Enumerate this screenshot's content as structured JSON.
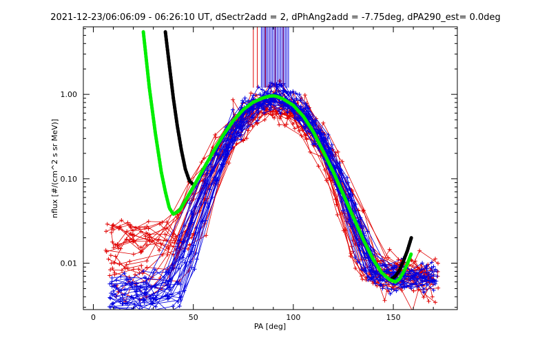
{
  "chart_data": {
    "type": "scatter",
    "title": "2021-12-23/06:06:09 - 06:26:10 UT, dSectr2add = 2, dPhAng2add = -7.75deg, dPA290_est=   0.0deg",
    "xlabel": "PA [deg]",
    "ylabel": "nflux [#/(cm^2 s sr MeV)]",
    "xlim": [
      -5,
      182
    ],
    "ylim_log10": [
      -2.55,
      0.8
    ],
    "xticks": [
      {
        "value": 0,
        "label": "0"
      },
      {
        "value": 50,
        "label": "50"
      },
      {
        "value": 100,
        "label": "100"
      },
      {
        "value": 150,
        "label": "150"
      }
    ],
    "yticks": [
      {
        "value": 0.01,
        "label": "0.01"
      },
      {
        "value": 0.1,
        "label": "0.10"
      },
      {
        "value": 1.0,
        "label": "1.00"
      }
    ],
    "yscale": "log",
    "grid": false,
    "colors": {
      "red_series": "#e00000",
      "blue_series": "#0000e0",
      "fit_green": "#00ee00",
      "fit_black": "#000000"
    },
    "fit_curves": [
      {
        "color": "green",
        "x": [
          25,
          28,
          31,
          34,
          36,
          38,
          40,
          43,
          46,
          50,
          55,
          60,
          65,
          70,
          75,
          80,
          85,
          88,
          90,
          92,
          95,
          100,
          105,
          110,
          115,
          120,
          125,
          130,
          135,
          140,
          144,
          148,
          151,
          153,
          155,
          157,
          159
        ],
        "y": [
          5.5,
          1.2,
          0.35,
          0.12,
          0.07,
          0.045,
          0.038,
          0.042,
          0.055,
          0.08,
          0.13,
          0.21,
          0.33,
          0.49,
          0.66,
          0.81,
          0.91,
          0.95,
          0.96,
          0.94,
          0.88,
          0.74,
          0.55,
          0.36,
          0.21,
          0.12,
          0.065,
          0.035,
          0.019,
          0.011,
          0.0078,
          0.0064,
          0.006,
          0.0065,
          0.0078,
          0.0098,
          0.013
        ]
      },
      {
        "color": "black",
        "x": [
          36,
          38,
          40,
          42,
          44,
          46,
          48,
          50
        ],
        "y": [
          5.5,
          2.2,
          0.9,
          0.42,
          0.22,
          0.13,
          0.095,
          0.085
        ]
      },
      {
        "color": "black",
        "x": [
          149,
          151,
          153,
          155,
          157,
          159
        ],
        "y": [
          0.0065,
          0.007,
          0.0082,
          0.0105,
          0.014,
          0.02
        ]
      }
    ]
  }
}
